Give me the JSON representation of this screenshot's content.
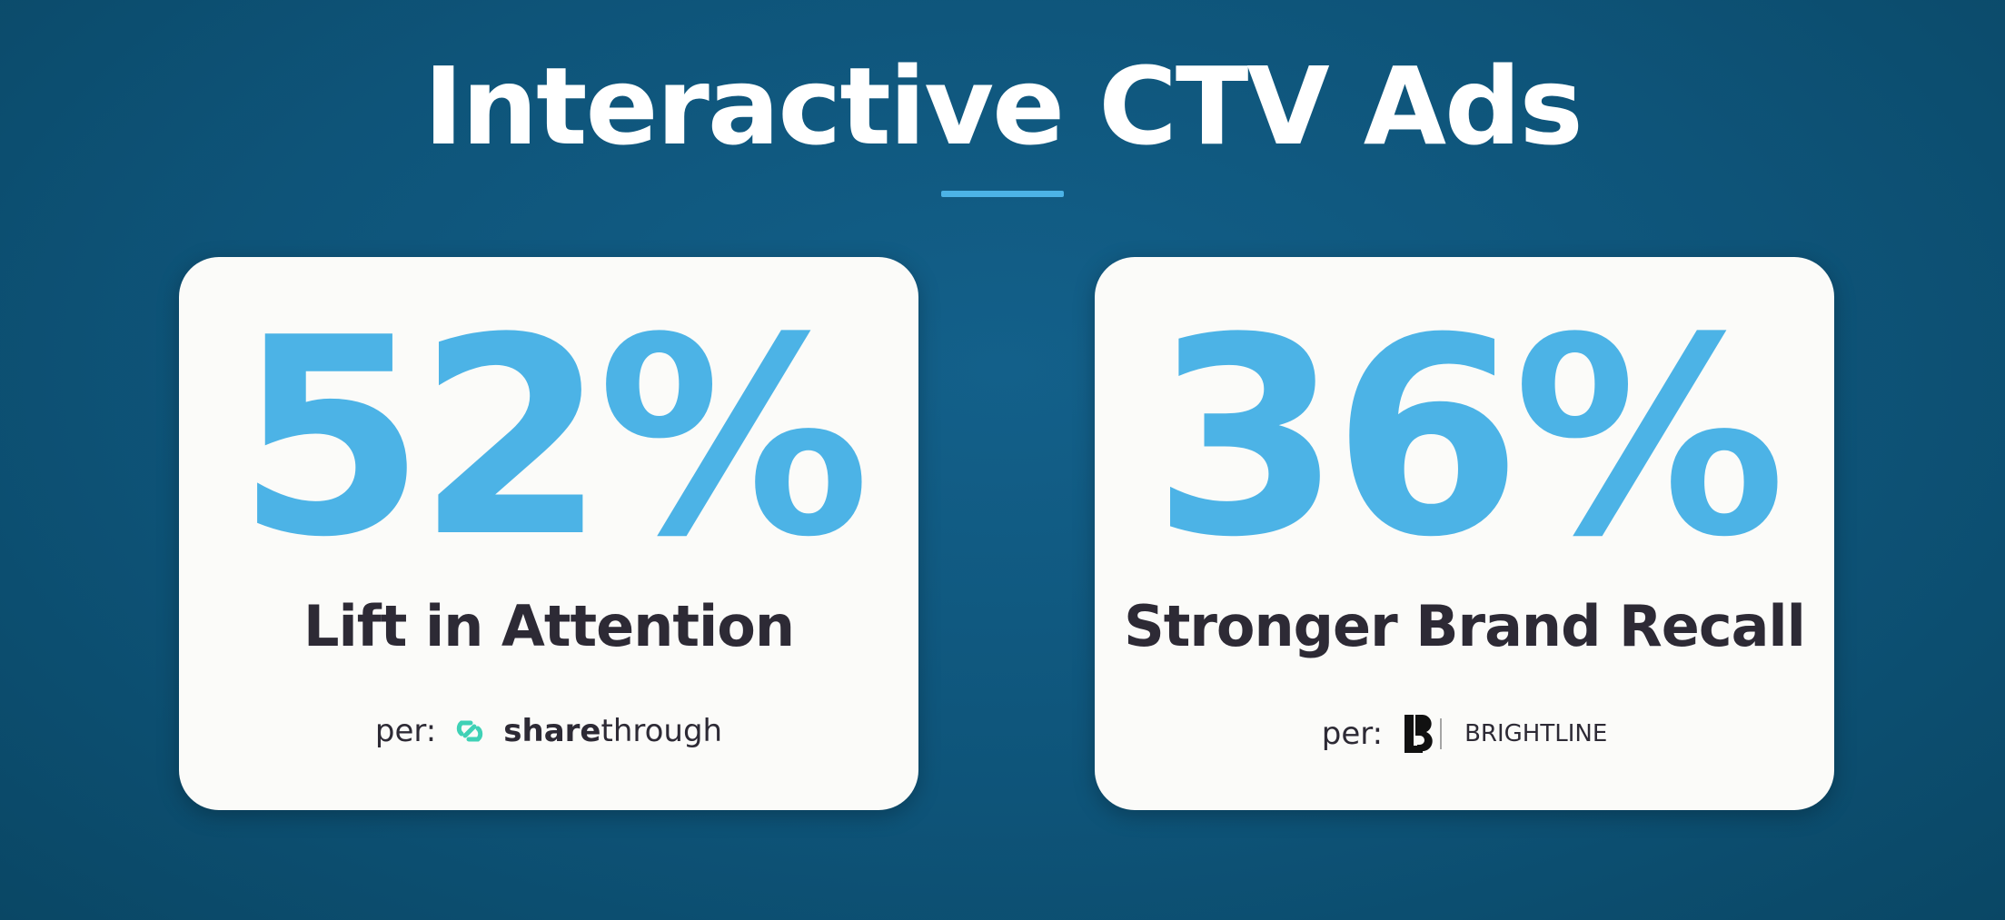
{
  "header": {
    "title": "Interactive CTV Ads"
  },
  "cards": [
    {
      "stat": "52%",
      "label": "Lift in Attention",
      "source_prefix": "per:",
      "source_parts": [
        "share",
        "through"
      ]
    },
    {
      "stat": "36%",
      "label": "Stronger Brand Recall",
      "source_prefix": "per:",
      "source_parts": [
        "BRIGHTLINE"
      ]
    }
  ]
}
